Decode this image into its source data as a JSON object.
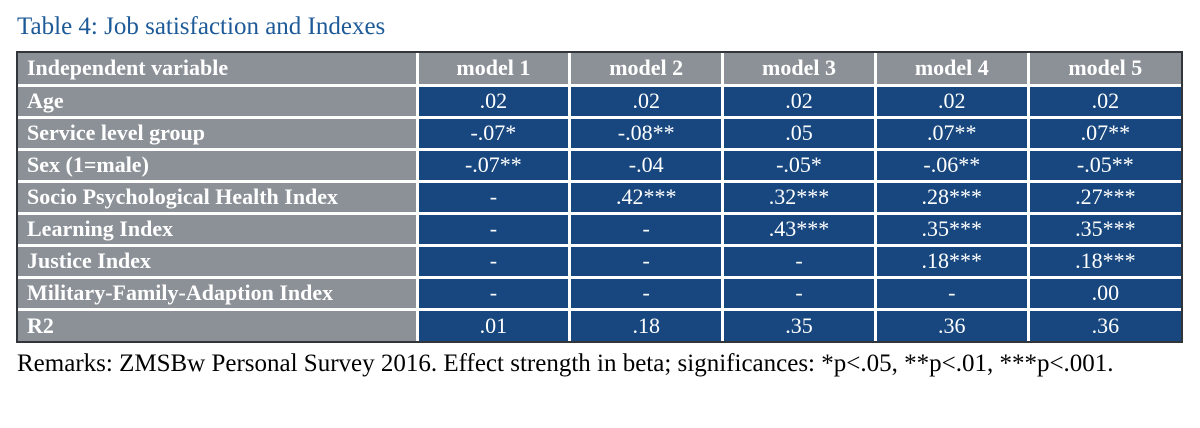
{
  "page": {
    "caption": "Table 4: Job satisfaction and Indexes",
    "remarks": "Remarks: ZMSBw Personal Survey 2016. Effect strength in beta; significances: *p<.05, **p<.01, ***p<.001."
  },
  "colors": {
    "header_bg": "#8B9197",
    "cell_bg": "#17477E",
    "caption_text": "#1D5A97",
    "border": "#32363B",
    "separator": "#FFFFFF"
  },
  "table": {
    "headers": [
      "Independent variable",
      "model 1",
      "model 2",
      "model 3",
      "model 4",
      "model 5"
    ],
    "rows": [
      {
        "label": "Age",
        "values": [
          ".02",
          ".02",
          ".02",
          ".02",
          ".02"
        ]
      },
      {
        "label": "Service level group",
        "values": [
          "-.07*",
          "-.08**",
          ".05",
          ".07**",
          ".07**"
        ]
      },
      {
        "label": "Sex (1=male)",
        "values": [
          "-.07**",
          "-.04",
          "-.05*",
          "-.06**",
          "-.05**"
        ]
      },
      {
        "label": "Socio Psychological Health Index",
        "values": [
          "-",
          ".42***",
          ".32***",
          ".28***",
          ".27***"
        ]
      },
      {
        "label": "Learning Index",
        "values": [
          "-",
          "-",
          ".43***",
          ".35***",
          ".35***"
        ]
      },
      {
        "label": "Justice Index",
        "values": [
          "-",
          "-",
          "-",
          ".18***",
          ".18***"
        ]
      },
      {
        "label": "Military-Family-Adaption Index",
        "values": [
          "-",
          "-",
          "-",
          "-",
          ".00"
        ]
      },
      {
        "label": "R2",
        "values": [
          ".01",
          ".18",
          ".35",
          ".36",
          ".36"
        ]
      }
    ]
  }
}
